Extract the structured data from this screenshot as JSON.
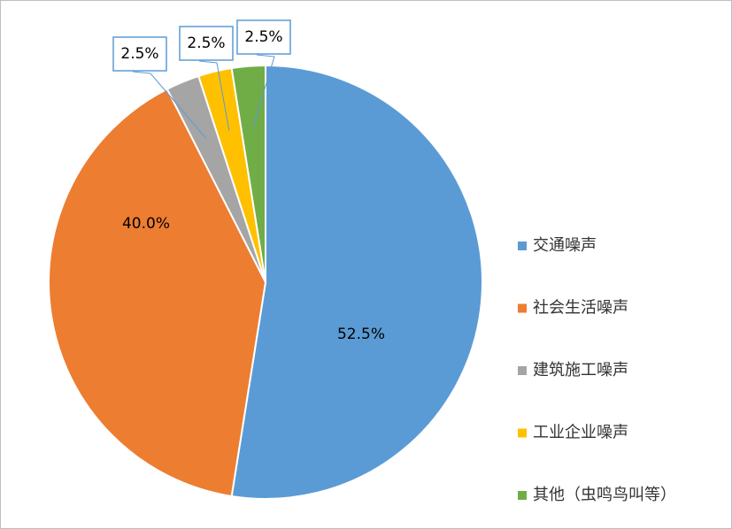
{
  "chart_data": {
    "type": "pie",
    "categories": [
      "交通噪声",
      "社会生活噪声",
      "建筑施工噪声",
      "工业企业噪声",
      "其他（虫鸣鸟叫等）"
    ],
    "values": [
      52.5,
      40.0,
      2.5,
      2.5,
      2.5
    ],
    "value_labels": [
      "52.5%",
      "40.0%",
      "2.5%",
      "2.5%",
      "2.5%"
    ],
    "colors": [
      "#5b9bd5",
      "#ed7d31",
      "#a5a5a5",
      "#ffc000",
      "#70ad47"
    ],
    "legend": "right"
  }
}
